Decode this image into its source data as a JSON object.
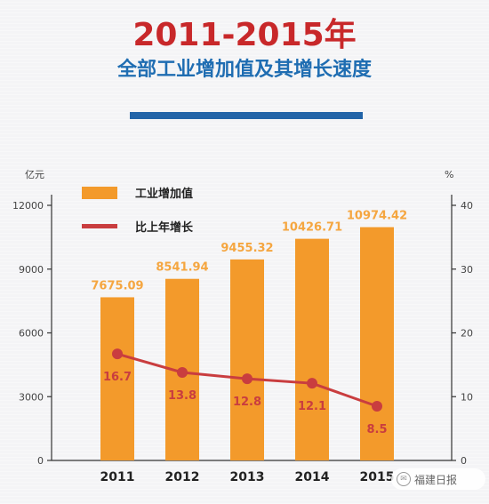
{
  "colors": {
    "title": "#c8282a",
    "subtitle": "#1f6db2",
    "rule": "#2264a8",
    "bar": "#f39a2b",
    "bar_label": "#f5a640",
    "line": "#c93d3f",
    "line_label": "#c93d3f",
    "axis": "#333333",
    "tick_text": "#444444"
  },
  "title": "2011-2015年",
  "subtitle": "全部工业增加值及其增长速度",
  "watermark": {
    "icon": "wechat-icon",
    "text": "福建日报"
  },
  "chart_data": {
    "type": "bar+line",
    "categories": [
      "2011",
      "2012",
      "2013",
      "2014",
      "2015"
    ],
    "series": [
      {
        "name": "工业增加值",
        "type": "bar",
        "axis": "left",
        "values": [
          7675.09,
          8541.94,
          9455.32,
          10426.71,
          10974.42
        ],
        "labels": [
          "7675.09",
          "8541.94",
          "9455.32",
          "10426.71",
          "10974.42"
        ]
      },
      {
        "name": "比上年增长",
        "type": "line",
        "axis": "right",
        "values": [
          16.7,
          13.8,
          12.8,
          12.1,
          8.5
        ],
        "labels": [
          "16.7",
          "13.8",
          "12.8",
          "12.1",
          "8.5"
        ]
      }
    ],
    "y_left": {
      "unit": "亿元",
      "ylim": [
        0,
        12000
      ],
      "ticks": [
        "0",
        "3000",
        "6000",
        "9000",
        "12000"
      ]
    },
    "y_right": {
      "unit": "%",
      "ylim": [
        0,
        40
      ],
      "ticks": [
        "0",
        "10",
        "20",
        "30",
        "40"
      ]
    },
    "grid": false,
    "legend": "top-left"
  }
}
